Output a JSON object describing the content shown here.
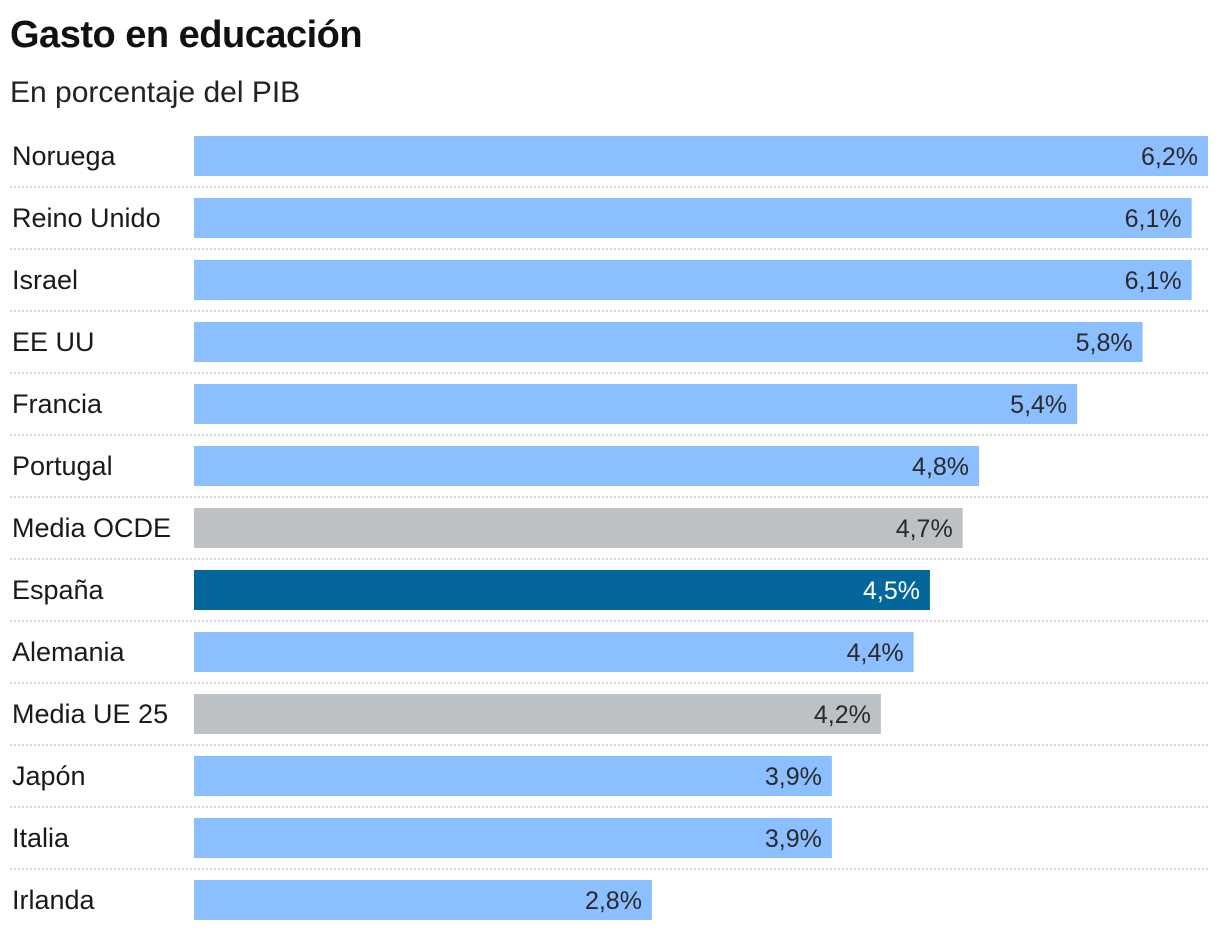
{
  "chart_data": {
    "type": "bar",
    "orientation": "horizontal",
    "title": "Gasto en educación",
    "subtitle": "En porcentaje del PIB",
    "xlim": [
      0,
      6.2
    ],
    "grid": false,
    "categories": [
      "Noruega",
      "Reino Unido",
      "Israel",
      "EE UU",
      "Francia",
      "Portugal",
      "Media OCDE",
      "España",
      "Alemania",
      "Media UE 25",
      "Japón",
      "Italia",
      "Irlanda"
    ],
    "values": [
      6.2,
      6.1,
      6.1,
      5.8,
      5.4,
      4.8,
      4.7,
      4.5,
      4.4,
      4.2,
      3.9,
      3.9,
      2.8
    ],
    "value_labels": [
      "6,2%",
      "6,1%",
      "6,1%",
      "5,8%",
      "5,4%",
      "4,8%",
      "4,7%",
      "4,5%",
      "4,4%",
      "4,2%",
      "3,9%",
      "3,9%",
      "2,8%"
    ],
    "bar_kind": [
      "country",
      "country",
      "country",
      "country",
      "country",
      "country",
      "average",
      "highlight",
      "country",
      "average",
      "country",
      "country",
      "country"
    ]
  },
  "colors": {
    "country": "#8bbfff",
    "average": "#bcc1c5",
    "highlight": "#04679b",
    "label_dark": "#2a2a2a",
    "label_light": "#ffffff",
    "separator": "#c8c8c8"
  }
}
